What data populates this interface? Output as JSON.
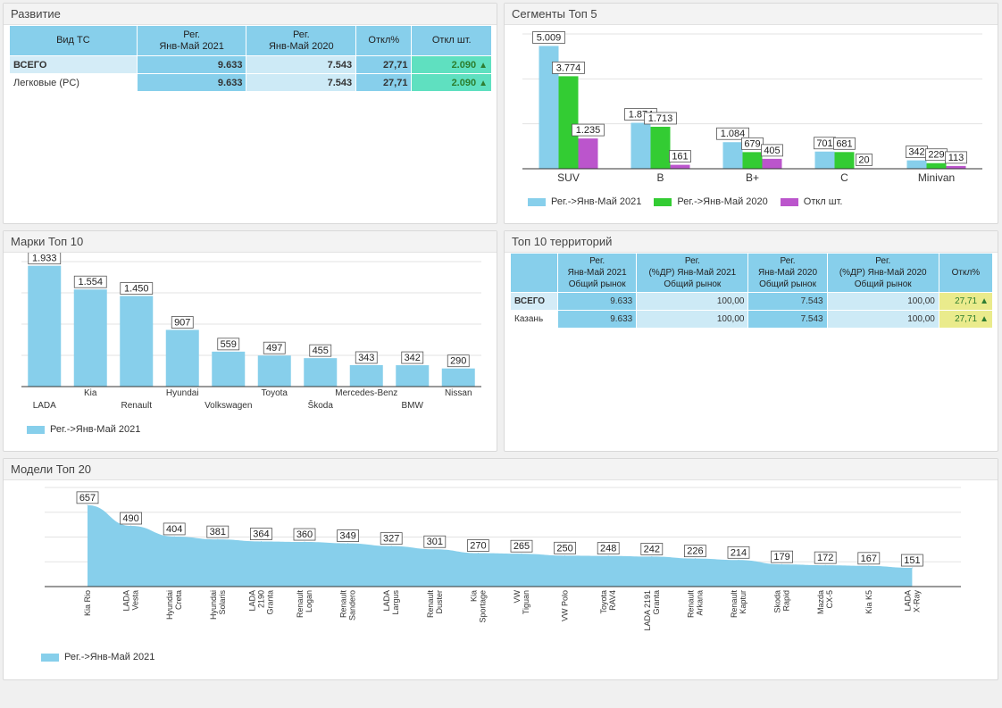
{
  "colors": {
    "series2021": "#87cfeb",
    "series2020": "#33cc33",
    "seriesDiff": "#bb55cc",
    "positive_arrow": "#2f7d32"
  },
  "panels": {
    "razvitie": "Развитие",
    "segments": "Сегменты Топ 5",
    "marki": "Марки Топ 10",
    "territories": "Топ 10 территорий",
    "models": "Модели Топ 20"
  },
  "razvitie_table": {
    "headers": [
      "Вид ТС",
      "Рег.\nЯнв-Май 2021",
      "Рег.\nЯнв-Май 2020",
      "Откл%",
      "Откл шт."
    ],
    "rows": [
      {
        "label": "ВСЕГО",
        "v2021": "9.633",
        "v2020": "7.543",
        "pct": "27,71",
        "diff": "2.090",
        "arrow": "▲"
      },
      {
        "label": "Легковые (PC)",
        "v2021": "9.633",
        "v2020": "7.543",
        "pct": "27,71",
        "diff": "2.090",
        "arrow": "▲"
      }
    ]
  },
  "territory_table": {
    "headers": [
      "",
      "Рег.\nЯнв-Май 2021\nОбщий рынок",
      "Рег.\n(%ДР) Янв-Май 2021\nОбщий рынок",
      "Рег.\nЯнв-Май 2020\nОбщий рынок",
      "Рег.\n(%ДР) Янв-Май 2020\nОбщий рынок",
      "Откл%"
    ],
    "rows": [
      {
        "label": "ВСЕГО",
        "v2021": "9.633",
        "p2021": "100,00",
        "v2020": "7.543",
        "p2020": "100,00",
        "pct": "27,71",
        "arrow": "▲"
      },
      {
        "label": "Казань",
        "v2021": "9.633",
        "p2021": "100,00",
        "v2020": "7.543",
        "p2020": "100,00",
        "pct": "27,71",
        "arrow": "▲"
      }
    ]
  },
  "chart_data": [
    {
      "id": "segments",
      "type": "bar",
      "categories": [
        "SUV",
        "B",
        "B+",
        "C",
        "Minivan"
      ],
      "series": [
        {
          "name": "Рег.->Янв-Май 2021",
          "values": [
            5009,
            1874,
            1084,
            701,
            342
          ],
          "labels": [
            "5.009",
            "1.874",
            "1.084",
            "701",
            "342"
          ]
        },
        {
          "name": "Рег.->Янв-Май 2020",
          "values": [
            3774,
            1713,
            679,
            681,
            229
          ],
          "labels": [
            "3.774",
            "1.713",
            "679",
            "681",
            "229"
          ]
        },
        {
          "name": "Откл шт.",
          "values": [
            1235,
            161,
            405,
            20,
            113
          ],
          "labels": [
            "1.235",
            "161",
            "405",
            "20",
            "113"
          ]
        }
      ],
      "ylim": [
        0,
        5500
      ],
      "grid": true,
      "legend": "bottom-left"
    },
    {
      "id": "marki",
      "type": "bar",
      "categories": [
        "LADA",
        "Kia",
        "Renault",
        "Hyundai",
        "Volkswagen",
        "Toyota",
        "Škoda",
        "Mercedes-Benz",
        "BMW",
        "Nissan"
      ],
      "series": [
        {
          "name": "Рег.->Янв-Май 2021",
          "values": [
            1933,
            1554,
            1450,
            907,
            559,
            497,
            455,
            343,
            342,
            290
          ],
          "labels": [
            "1.933",
            "1.554",
            "1.450",
            "907",
            "559",
            "497",
            "455",
            "343",
            "342",
            "290"
          ]
        }
      ],
      "ylim": [
        0,
        2000
      ],
      "grid": true,
      "legend": "bottom-left"
    },
    {
      "id": "models",
      "type": "area",
      "categories": [
        "Kia Rio",
        "LADA\nVesta",
        "Hyundai\nCreta",
        "Hyundai\nSolaris",
        "LADA\n2190\nGranta",
        "Renault\nLogan",
        "Renault\nSandero",
        "LADA\nLargus",
        "Renault\nDuster",
        "Kia\nSportage",
        "VW\nTiguan",
        "VW Polo",
        "Toyota\nRAV4",
        "LADA 2191\nGranta",
        "Renault\nArkana",
        "Renault\nKaptur",
        "Skoda\nRapid",
        "Mazda\nCX-5",
        "Kia K5",
        "LADA\nX-Ray"
      ],
      "series": [
        {
          "name": "Рег.->Янв-Май 2021",
          "values": [
            657,
            490,
            404,
            381,
            364,
            360,
            349,
            327,
            301,
            270,
            265,
            250,
            248,
            242,
            226,
            214,
            179,
            172,
            167,
            151
          ],
          "labels": [
            "657",
            "490",
            "404",
            "381",
            "364",
            "360",
            "349",
            "327",
            "301",
            "270",
            "265",
            "250",
            "248",
            "242",
            "226",
            "214",
            "179",
            "172",
            "167",
            "151"
          ]
        }
      ],
      "ylim": [
        0,
        800
      ],
      "grid": true,
      "legend": "bottom-left"
    }
  ]
}
